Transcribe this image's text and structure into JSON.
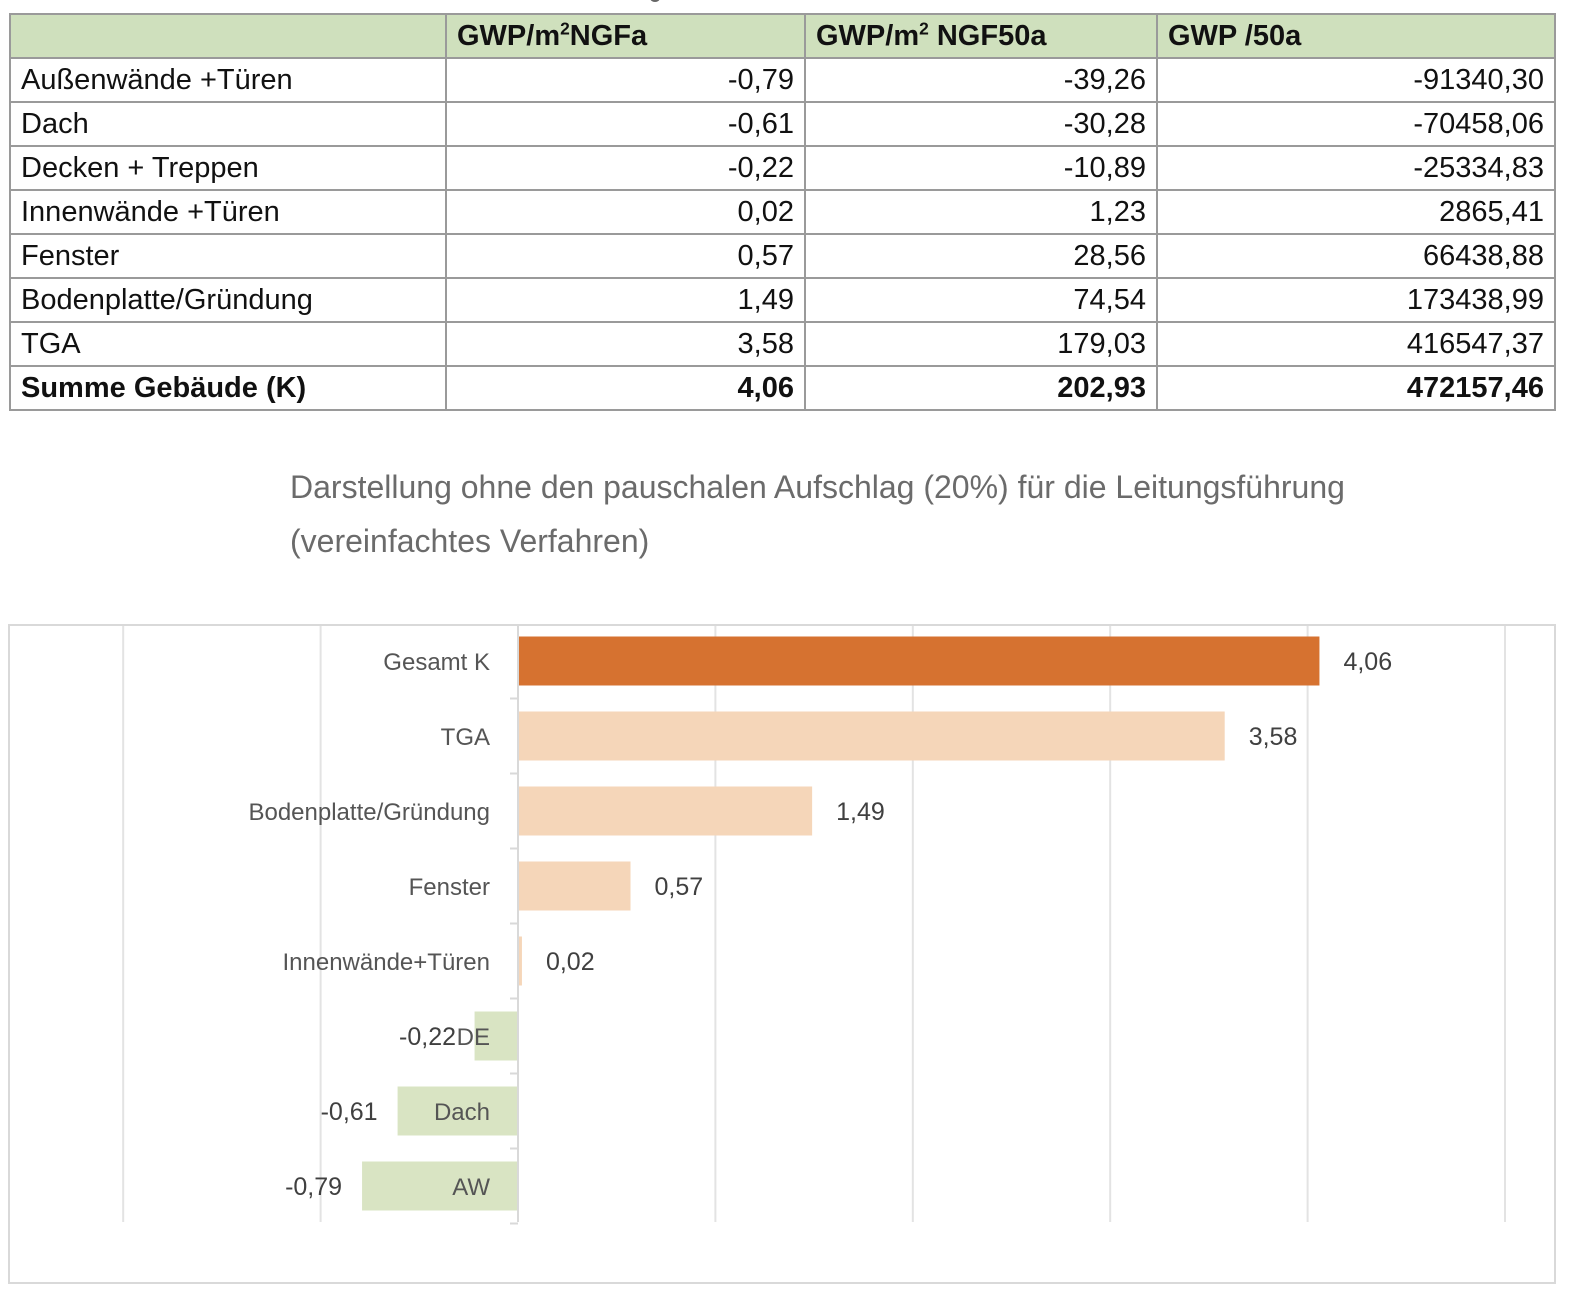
{
  "table": {
    "headers": [
      "",
      "GWP/m²NGFa",
      "GWP/m² NGF50a",
      "GWP /50a"
    ],
    "header_parts": [
      {
        "pre": "",
        "sup": "",
        "post": ""
      },
      {
        "pre": "GWP/m",
        "sup": "2",
        "post": "NGFa"
      },
      {
        "pre": "GWP/m",
        "sup": "2",
        "post": " NGF50a"
      },
      {
        "pre": "GWP /50a",
        "sup": "",
        "post": ""
      }
    ],
    "rows": [
      [
        "Außenwände +Türen",
        "-0,79",
        "-39,26",
        "-91340,30"
      ],
      [
        "Dach",
        "-0,61",
        "-30,28",
        "-70458,06"
      ],
      [
        "Decken + Treppen",
        "-0,22",
        "-10,89",
        "-25334,83"
      ],
      [
        "Innenwände +Türen",
        "0,02",
        "1,23",
        "2865,41"
      ],
      [
        "Fenster",
        "0,57",
        "28,56",
        "66438,88"
      ],
      [
        "Bodenplatte/Gründung",
        "1,49",
        "74,54",
        "173438,99"
      ],
      [
        "TGA",
        "3,58",
        "179,03",
        "416547,37"
      ]
    ],
    "total": [
      "Summe Gebäude (K)",
      "4,06",
      "202,93",
      "472157,46"
    ],
    "header_color": "#cfe0bd"
  },
  "caption": {
    "line1": "Darstellung ohne den pauschalen Aufschlag (20%) für die Leitungsführung",
    "line2": "(vereinfachtes Verfahren)"
  },
  "chart_data": {
    "type": "bar",
    "orientation": "horizontal",
    "title": "",
    "xlabel": "",
    "ylabel": "",
    "xlim": [
      -2,
      5
    ],
    "grid": true,
    "categories": [
      "Gesamt K",
      "TGA",
      "Bodenplatte/Gründung",
      "Fenster",
      "Innenwände+Türen",
      "DE",
      "Dach",
      "AW"
    ],
    "values": [
      4.06,
      3.58,
      1.49,
      0.57,
      0.02,
      -0.22,
      -0.61,
      -0.79
    ],
    "data_labels": [
      "4,06",
      "3,58",
      "1,49",
      "0,57",
      "0,02",
      "-0,22",
      "-0,61",
      "-0,79"
    ],
    "colors": {
      "total": "#d67230",
      "positive": "#f5d6b9",
      "negative": "#d9e4c3"
    }
  }
}
